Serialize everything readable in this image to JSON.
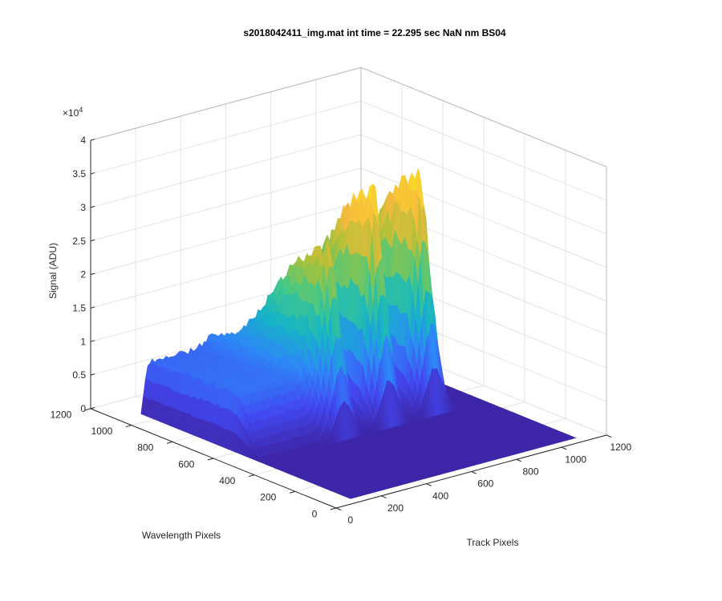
{
  "chart_data": {
    "type": "surface",
    "title": "s2018042411_img.mat int time = 22.295 sec  NaN nm BS04",
    "xlabel": "Track Pixels",
    "ylabel": "Wavelength Pixels",
    "zlabel": "Signal (ADU)",
    "z_exponent_label": "×10",
    "z_exponent_power": "4",
    "x_ticks": [
      "0",
      "200",
      "400",
      "600",
      "800",
      "1000",
      "1200"
    ],
    "y_ticks": [
      "0",
      "200",
      "400",
      "600",
      "800",
      "1000",
      "1200"
    ],
    "z_ticks": [
      "0",
      "0.5",
      "1",
      "1.5",
      "2",
      "2.5",
      "3",
      "3.5",
      "4"
    ],
    "xlim": [
      0,
      1200
    ],
    "ylim": [
      0,
      1200
    ],
    "zlim": [
      0,
      40000
    ],
    "grid": true,
    "colormap": [
      "#3e26a8",
      "#4248f1",
      "#2e87f7",
      "#16b4c6",
      "#41c88a",
      "#a9c138",
      "#f6ba3d",
      "#f9d82b"
    ],
    "data": {
      "x_range": [
        100,
        1100
      ],
      "y_range": [
        40,
        1070
      ],
      "peaks": [
        {
          "track_center": 480,
          "wavelength_center": 560,
          "peak_signal": 27000
        },
        {
          "track_center": 680,
          "wavelength_center": 560,
          "peak_signal": 34000
        },
        {
          "track_center": 880,
          "wavelength_center": 560,
          "peak_signal": 34000
        }
      ],
      "shoulder": {
        "track_range": [
          100,
          420
        ],
        "wavelength_min": 620,
        "signal": 8000
      },
      "baseline_signal": 0
    }
  }
}
